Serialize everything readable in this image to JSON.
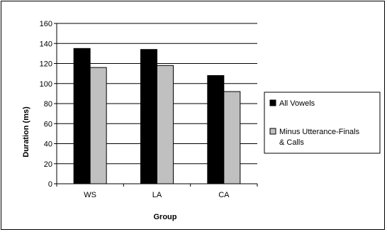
{
  "chart_data": {
    "type": "bar",
    "categories": [
      "WS",
      "LA",
      "CA"
    ],
    "series": [
      {
        "name": "All Vowels",
        "values": [
          135,
          134,
          108
        ],
        "color": "#000000"
      },
      {
        "name_lines": [
          "Minus Utterance-Finals",
          "& Calls"
        ],
        "values": [
          116,
          118,
          92
        ],
        "color": "#c0c0c0"
      }
    ],
    "xlabel": "Group",
    "ylabel": "Duration (ms)",
    "ylim": [
      0,
      160
    ],
    "yticks": [
      0,
      20,
      40,
      60,
      80,
      100,
      120,
      140,
      160
    ],
    "grid": true,
    "legend_position": "right"
  }
}
